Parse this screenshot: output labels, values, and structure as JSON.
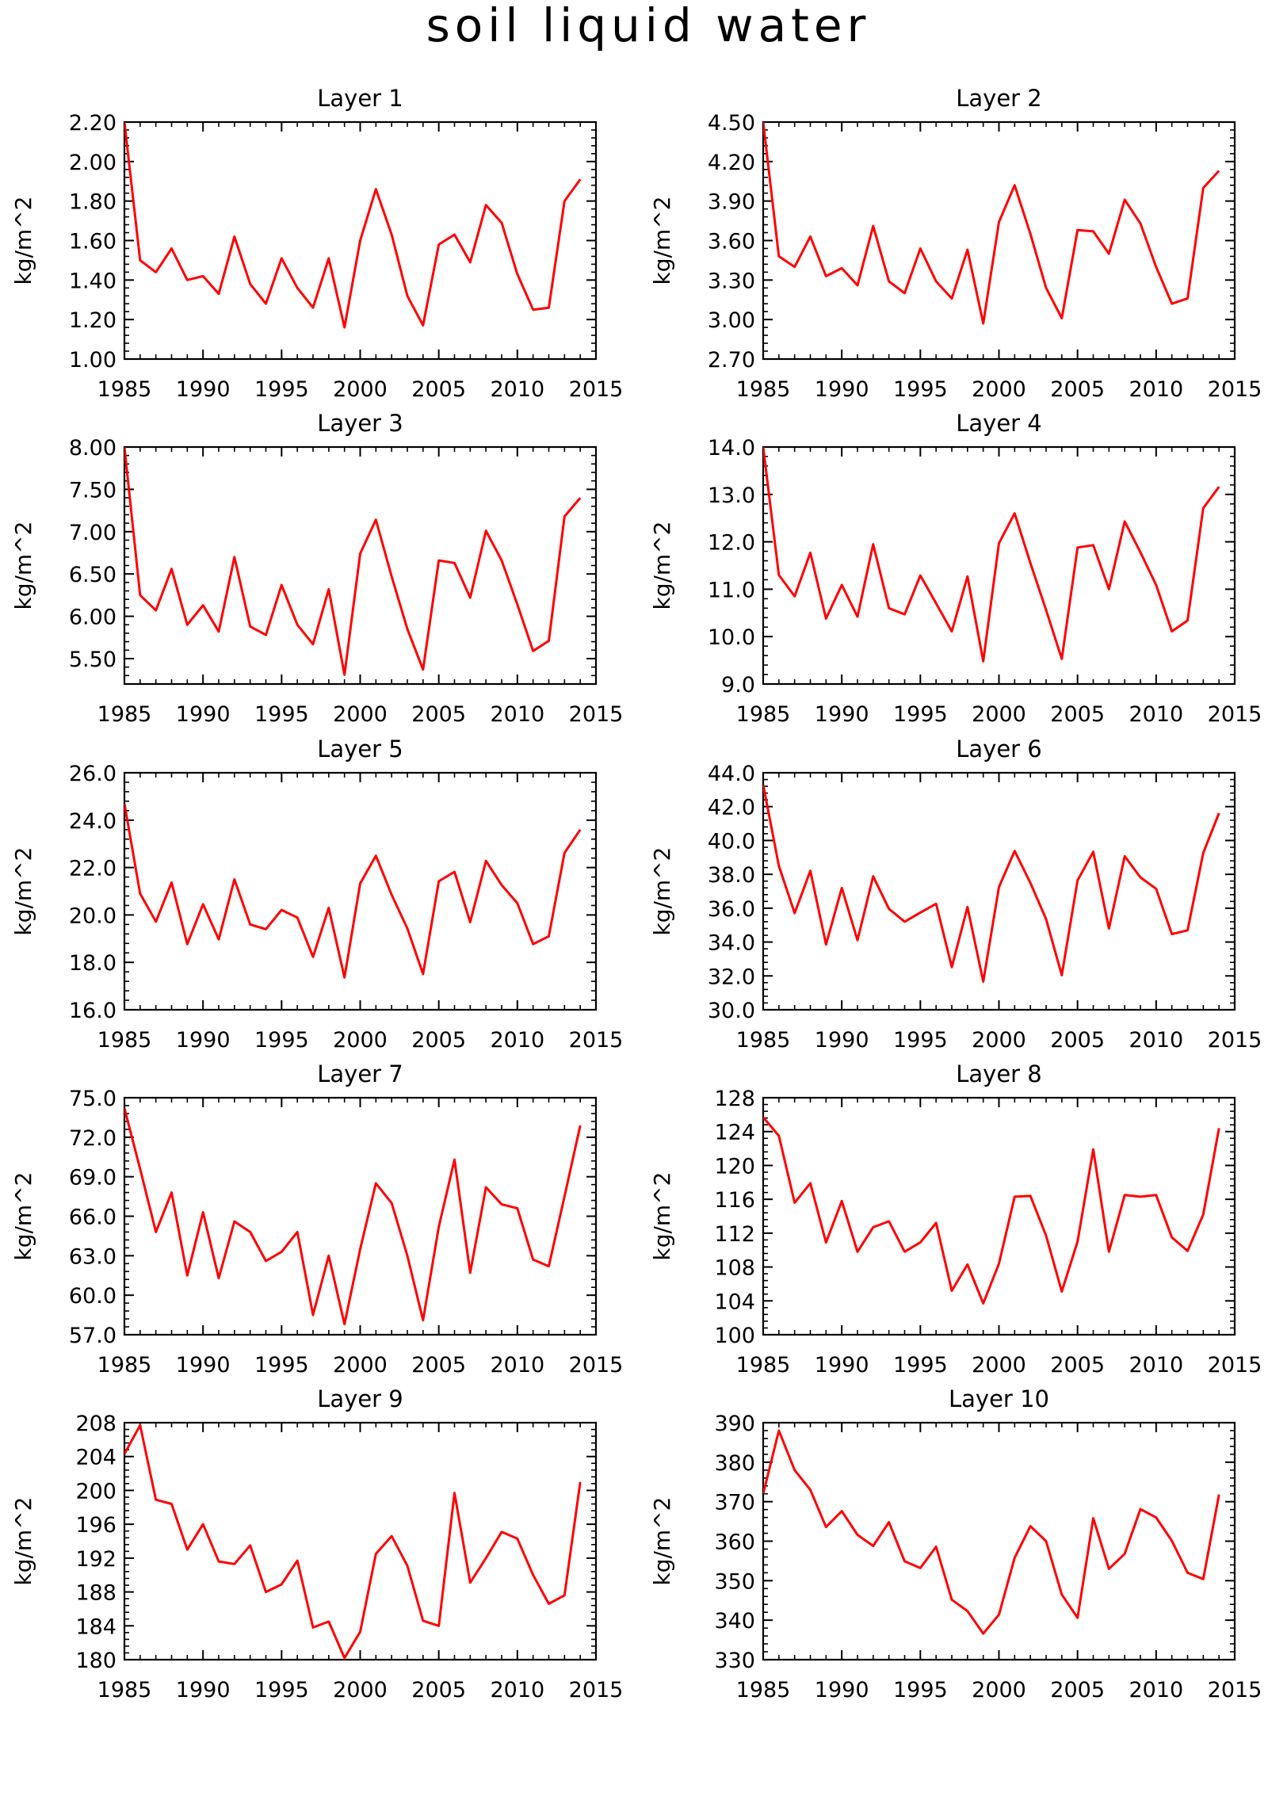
{
  "figure_title": "soil liquid water",
  "chart_data": [
    {
      "type": "line",
      "title": "Layer 1",
      "ylabel": "kg/m^2",
      "xlim": [
        1985,
        2015
      ],
      "ylim": [
        1.0,
        2.2
      ],
      "xticks": [
        1985,
        1990,
        1995,
        2000,
        2005,
        2010,
        2015
      ],
      "yticks": [
        "1.00",
        "1.20",
        "1.40",
        "1.60",
        "1.80",
        "2.00",
        "2.20"
      ],
      "yminor_step": 0.04,
      "color": "#ff0000",
      "x": [
        1985,
        1986,
        1987,
        1988,
        1989,
        1990,
        1991,
        1992,
        1993,
        1994,
        1995,
        1996,
        1997,
        1998,
        1999,
        2000,
        2001,
        2002,
        2003,
        2004,
        2005,
        2006,
        2007,
        2008,
        2009,
        2010,
        2011,
        2012,
        2013,
        2014
      ],
      "values": [
        2.2,
        1.5,
        1.44,
        1.56,
        1.4,
        1.42,
        1.33,
        1.62,
        1.38,
        1.28,
        1.51,
        1.36,
        1.26,
        1.51,
        1.16,
        1.6,
        1.86,
        1.63,
        1.32,
        1.17,
        1.58,
        1.63,
        1.49,
        1.78,
        1.69,
        1.43,
        1.25,
        1.26,
        1.8,
        1.91
      ]
    },
    {
      "type": "line",
      "title": "Layer 2",
      "ylabel": "kg/m^2",
      "xlim": [
        1985,
        2015
      ],
      "ylim": [
        2.7,
        4.5
      ],
      "xticks": [
        1985,
        1990,
        1995,
        2000,
        2005,
        2010,
        2015
      ],
      "yticks": [
        "2.70",
        "3.00",
        "3.30",
        "3.60",
        "3.90",
        "4.20",
        "4.50"
      ],
      "yminor_step": 0.06,
      "color": "#ff0000",
      "x": [
        1985,
        1986,
        1987,
        1988,
        1989,
        1990,
        1991,
        1992,
        1993,
        1994,
        1995,
        1996,
        1997,
        1998,
        1999,
        2000,
        2001,
        2002,
        2003,
        2004,
        2005,
        2006,
        2007,
        2008,
        2009,
        2010,
        2011,
        2012,
        2013,
        2014
      ],
      "values": [
        4.5,
        3.48,
        3.4,
        3.63,
        3.33,
        3.39,
        3.26,
        3.71,
        3.29,
        3.2,
        3.54,
        3.29,
        3.16,
        3.53,
        2.97,
        3.74,
        4.02,
        3.65,
        3.24,
        3.01,
        3.68,
        3.67,
        3.5,
        3.91,
        3.73,
        3.4,
        3.12,
        3.16,
        4.0,
        4.13
      ]
    },
    {
      "type": "line",
      "title": "Layer 3",
      "ylabel": "kg/m^2",
      "xlim": [
        1985,
        2015
      ],
      "ylim": [
        5.2,
        8.0
      ],
      "xticks": [
        1985,
        1990,
        1995,
        2000,
        2005,
        2010,
        2015
      ],
      "yticks": [
        "5.50",
        "6.00",
        "6.50",
        "7.00",
        "7.50",
        "8.00"
      ],
      "yminor_step": 0.1,
      "color": "#ff0000",
      "x": [
        1985,
        1986,
        1987,
        1988,
        1989,
        1990,
        1991,
        1992,
        1993,
        1994,
        1995,
        1996,
        1997,
        1998,
        1999,
        2000,
        2001,
        2002,
        2003,
        2004,
        2005,
        2006,
        2007,
        2008,
        2009,
        2010,
        2011,
        2012,
        2013,
        2014
      ],
      "values": [
        8.0,
        6.25,
        6.07,
        6.56,
        5.9,
        6.13,
        5.82,
        6.7,
        5.88,
        5.78,
        6.37,
        5.9,
        5.67,
        6.32,
        5.31,
        6.74,
        7.14,
        6.47,
        5.85,
        5.37,
        6.66,
        6.63,
        6.22,
        7.01,
        6.66,
        6.14,
        5.59,
        5.71,
        7.18,
        7.4
      ]
    },
    {
      "type": "line",
      "title": "Layer 4",
      "ylabel": "kg/m^2",
      "xlim": [
        1985,
        2015
      ],
      "ylim": [
        9.0,
        14.0
      ],
      "xticks": [
        1985,
        1990,
        1995,
        2000,
        2005,
        2010,
        2015
      ],
      "yticks": [
        "9.0",
        "10.0",
        "11.0",
        "12.0",
        "13.0",
        "14.0"
      ],
      "yminor_step": 0.2,
      "color": "#ff0000",
      "x": [
        1985,
        1986,
        1987,
        1988,
        1989,
        1990,
        1991,
        1992,
        1993,
        1994,
        1995,
        1996,
        1997,
        1998,
        1999,
        2000,
        2001,
        2002,
        2003,
        2004,
        2005,
        2006,
        2007,
        2008,
        2009,
        2010,
        2011,
        2012,
        2013,
        2014
      ],
      "values": [
        14.0,
        11.3,
        10.85,
        11.77,
        10.38,
        11.09,
        10.42,
        11.95,
        10.6,
        10.47,
        11.29,
        10.7,
        10.11,
        11.27,
        9.48,
        11.97,
        12.6,
        11.55,
        10.56,
        9.53,
        11.88,
        11.93,
        11.0,
        12.43,
        11.78,
        11.09,
        10.11,
        10.34,
        12.71,
        13.16
      ]
    },
    {
      "type": "line",
      "title": "Layer 5",
      "ylabel": "kg/m^2",
      "xlim": [
        1985,
        2015
      ],
      "ylim": [
        16.0,
        26.0
      ],
      "xticks": [
        1985,
        1990,
        1995,
        2000,
        2005,
        2010,
        2015
      ],
      "yticks": [
        "16.0",
        "18.0",
        "20.0",
        "22.0",
        "24.0",
        "26.0"
      ],
      "yminor_step": 0.4,
      "color": "#ff0000",
      "x": [
        1985,
        1986,
        1987,
        1988,
        1989,
        1990,
        1991,
        1992,
        1993,
        1994,
        1995,
        1996,
        1997,
        1998,
        1999,
        2000,
        2001,
        2002,
        2003,
        2004,
        2005,
        2006,
        2007,
        2008,
        2009,
        2010,
        2011,
        2012,
        2013,
        2014
      ],
      "values": [
        24.7,
        20.9,
        19.72,
        21.37,
        18.77,
        20.45,
        18.97,
        21.5,
        19.6,
        19.4,
        20.21,
        19.89,
        18.23,
        20.3,
        17.36,
        21.33,
        22.5,
        20.85,
        19.43,
        17.51,
        21.42,
        21.82,
        19.7,
        22.28,
        21.26,
        20.5,
        18.77,
        19.1,
        22.62,
        23.6
      ]
    },
    {
      "type": "line",
      "title": "Layer 6",
      "ylabel": "kg/m^2",
      "xlim": [
        1985,
        2015
      ],
      "ylim": [
        30.0,
        44.0
      ],
      "xticks": [
        1985,
        1990,
        1995,
        2000,
        2005,
        2010,
        2015
      ],
      "yticks": [
        "30.0",
        "32.0",
        "34.0",
        "36.0",
        "38.0",
        "40.0",
        "42.0",
        "44.0"
      ],
      "yminor_step": 0.4,
      "color": "#ff0000",
      "x": [
        1985,
        1986,
        1987,
        1988,
        1989,
        1990,
        1991,
        1992,
        1993,
        1994,
        1995,
        1996,
        1997,
        1998,
        1999,
        2000,
        2001,
        2002,
        2003,
        2004,
        2005,
        2006,
        2007,
        2008,
        2009,
        2010,
        2011,
        2012,
        2013,
        2014
      ],
      "values": [
        43.3,
        38.5,
        35.71,
        38.21,
        33.86,
        37.19,
        34.11,
        37.88,
        35.96,
        35.2,
        35.74,
        36.26,
        32.52,
        36.07,
        31.66,
        37.25,
        39.38,
        37.49,
        35.35,
        32.04,
        37.64,
        39.33,
        34.8,
        39.07,
        37.82,
        37.15,
        34.47,
        34.69,
        39.26,
        41.62
      ]
    },
    {
      "type": "line",
      "title": "Layer 7",
      "ylabel": "kg/m^2",
      "xlim": [
        1985,
        2015
      ],
      "ylim": [
        57.0,
        75.0
      ],
      "xticks": [
        1985,
        1990,
        1995,
        2000,
        2005,
        2010,
        2015
      ],
      "yticks": [
        "57.0",
        "60.0",
        "63.0",
        "66.0",
        "69.0",
        "72.0",
        "75.0"
      ],
      "yminor_step": 0.6,
      "color": "#ff0000",
      "x": [
        1985,
        1986,
        1987,
        1988,
        1989,
        1990,
        1991,
        1992,
        1993,
        1994,
        1995,
        1996,
        1997,
        1998,
        1999,
        2000,
        2001,
        2002,
        2003,
        2004,
        2005,
        2006,
        2007,
        2008,
        2009,
        2010,
        2011,
        2012,
        2013,
        2014
      ],
      "values": [
        74.2,
        69.6,
        64.8,
        67.8,
        61.5,
        66.3,
        61.3,
        65.6,
        64.8,
        62.6,
        63.3,
        64.8,
        58.5,
        63.0,
        57.8,
        63.5,
        68.5,
        67.0,
        63.0,
        58.1,
        65.2,
        70.3,
        61.7,
        68.2,
        66.9,
        66.6,
        62.7,
        62.2,
        67.5,
        72.9
      ]
    },
    {
      "type": "line",
      "title": "Layer 8",
      "ylabel": "kg/m^2",
      "xlim": [
        1985,
        2015
      ],
      "ylim": [
        100,
        128
      ],
      "xticks": [
        1985,
        1990,
        1995,
        2000,
        2005,
        2010,
        2015
      ],
      "yticks": [
        "100",
        "104",
        "108",
        "112",
        "116",
        "120",
        "124",
        "128"
      ],
      "yminor_step": 0.8,
      "color": "#ff0000",
      "x": [
        1985,
        1986,
        1987,
        1988,
        1989,
        1990,
        1991,
        1992,
        1993,
        1994,
        1995,
        1996,
        1997,
        1998,
        1999,
        2000,
        2001,
        2002,
        2003,
        2004,
        2005,
        2006,
        2007,
        2008,
        2009,
        2010,
        2011,
        2012,
        2013,
        2014
      ],
      "values": [
        125.7,
        123.5,
        115.6,
        117.9,
        110.9,
        115.8,
        109.8,
        112.7,
        113.4,
        109.8,
        110.9,
        113.2,
        105.2,
        108.3,
        103.7,
        108.4,
        116.3,
        116.4,
        111.7,
        105.1,
        111.0,
        121.9,
        109.8,
        116.5,
        116.3,
        116.5,
        111.5,
        109.9,
        114.2,
        124.4
      ]
    },
    {
      "type": "line",
      "title": "Layer 9",
      "ylabel": "kg/m^2",
      "xlim": [
        1985,
        2015
      ],
      "ylim": [
        180,
        208
      ],
      "xticks": [
        1985,
        1990,
        1995,
        2000,
        2005,
        2010,
        2015
      ],
      "yticks": [
        "180",
        "184",
        "188",
        "192",
        "196",
        "200",
        "204",
        "208"
      ],
      "yminor_step": 0.8,
      "color": "#ff0000",
      "x": [
        1985,
        1986,
        1987,
        1988,
        1989,
        1990,
        1991,
        1992,
        1993,
        1994,
        1995,
        1996,
        1997,
        1998,
        1999,
        2000,
        2001,
        2002,
        2003,
        2004,
        2005,
        2006,
        2007,
        2008,
        2009,
        2010,
        2011,
        2012,
        2013,
        2014
      ],
      "values": [
        204.3,
        207.7,
        198.9,
        198.4,
        193.0,
        196.0,
        191.6,
        191.3,
        193.5,
        188.0,
        188.9,
        191.7,
        183.8,
        184.5,
        180.2,
        183.3,
        192.5,
        194.6,
        191.1,
        184.6,
        184.0,
        199.7,
        189.1,
        192.0,
        195.1,
        194.3,
        190.0,
        186.6,
        187.6,
        201.0
      ]
    },
    {
      "type": "line",
      "title": "Layer 10",
      "ylabel": "kg/m^2",
      "xlim": [
        1985,
        2015
      ],
      "ylim": [
        330,
        390
      ],
      "xticks": [
        1985,
        1990,
        1995,
        2000,
        2005,
        2010,
        2015
      ],
      "yticks": [
        "330",
        "340",
        "350",
        "360",
        "370",
        "380",
        "390"
      ],
      "yminor_step": 2,
      "color": "#ff0000",
      "x": [
        1985,
        1986,
        1987,
        1988,
        1989,
        1990,
        1991,
        1992,
        1993,
        1994,
        1995,
        1996,
        1997,
        1998,
        1999,
        2000,
        2001,
        2002,
        2003,
        2004,
        2005,
        2006,
        2007,
        2008,
        2009,
        2010,
        2011,
        2012,
        2013,
        2014
      ],
      "values": [
        372.0,
        388.0,
        378.0,
        373.0,
        363.6,
        367.6,
        361.6,
        358.8,
        364.8,
        354.9,
        353.2,
        358.6,
        345.2,
        342.3,
        336.6,
        341.4,
        355.8,
        363.8,
        360.0,
        346.5,
        340.6,
        365.8,
        353.0,
        356.8,
        368.1,
        366.0,
        360.1,
        352.0,
        350.4,
        371.8
      ]
    }
  ]
}
